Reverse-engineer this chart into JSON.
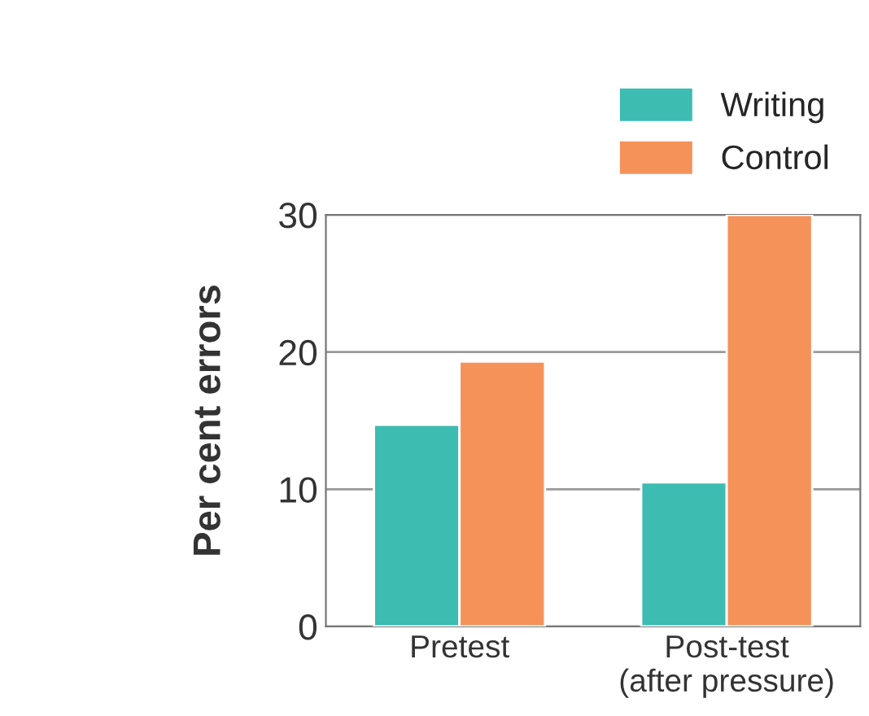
{
  "chart_data": {
    "type": "bar",
    "ylabel": "Per cent errors",
    "categories": [
      "Pretest",
      "Post-test\n(after pressure)"
    ],
    "series": [
      {
        "name": "Writing",
        "color": "#3dbcb1",
        "values": [
          14.7,
          10.5
        ]
      },
      {
        "name": "Control",
        "color": "#f5925a",
        "values": [
          19.3,
          30
        ]
      }
    ],
    "ylim": [
      0,
      30
    ],
    "yticks": [
      0,
      10,
      20,
      30
    ],
    "grid": "y",
    "legend": "top right"
  }
}
